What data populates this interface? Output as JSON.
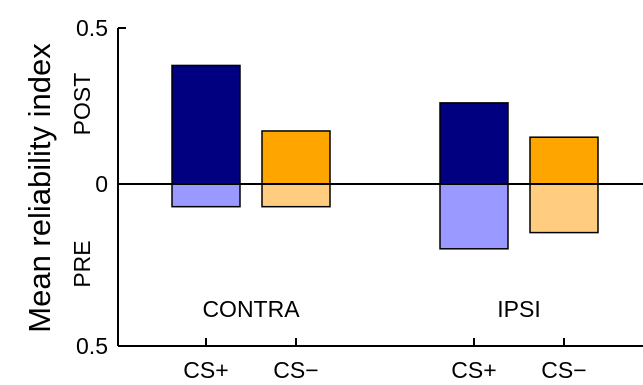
{
  "chart_data": {
    "type": "bar",
    "ylabel": "Mean reliability index",
    "upper_label": "POST",
    "lower_label": "PRE",
    "ylim": [
      -0.5,
      0.5
    ],
    "yticks": [
      {
        "value": 0.5,
        "label": "0.5"
      },
      {
        "value": 0,
        "label": "0"
      },
      {
        "value": -0.5,
        "label": "0.5"
      }
    ],
    "categories": [
      "CS+",
      "CS−",
      "CS+",
      "CS−"
    ],
    "groups": [
      {
        "label": "CONTRA",
        "categories": [
          0,
          1
        ]
      },
      {
        "label": "IPSI",
        "categories": [
          2,
          3
        ]
      }
    ],
    "series": [
      {
        "name": "POST",
        "values": [
          0.38,
          0.17,
          0.26,
          0.15
        ]
      },
      {
        "name": "PRE",
        "values": [
          0.07,
          0.07,
          0.2,
          0.15
        ]
      }
    ],
    "colors": {
      "post": [
        "#000080",
        "#ffa500",
        "#000080",
        "#ffa500"
      ],
      "pre": [
        "#9999ff",
        "#ffcc80",
        "#9999ff",
        "#ffcc80"
      ]
    }
  }
}
